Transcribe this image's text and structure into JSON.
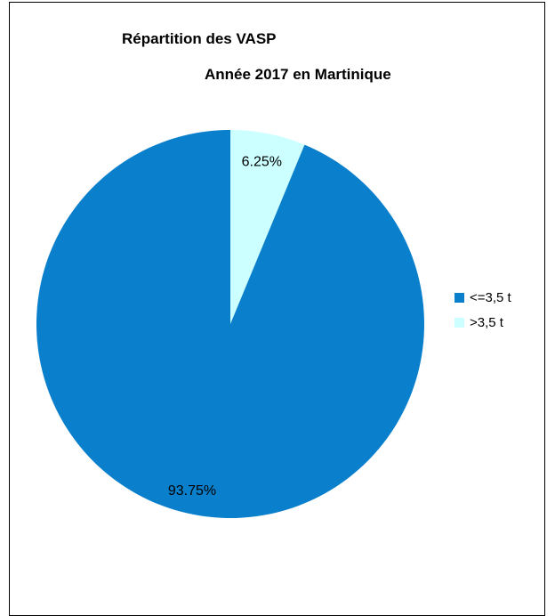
{
  "chart_data": {
    "type": "pie",
    "title": "Répartition des VASP",
    "subtitle": "Année 2017 en Martinique",
    "categories": [
      "<=3,5 t",
      ">3,5 t"
    ],
    "values": [
      93.75,
      6.25
    ],
    "data_labels": [
      "93.75%",
      "6.25%"
    ],
    "colors": [
      "#0a7fcc",
      "#ccffff"
    ],
    "legend_position": "right"
  }
}
